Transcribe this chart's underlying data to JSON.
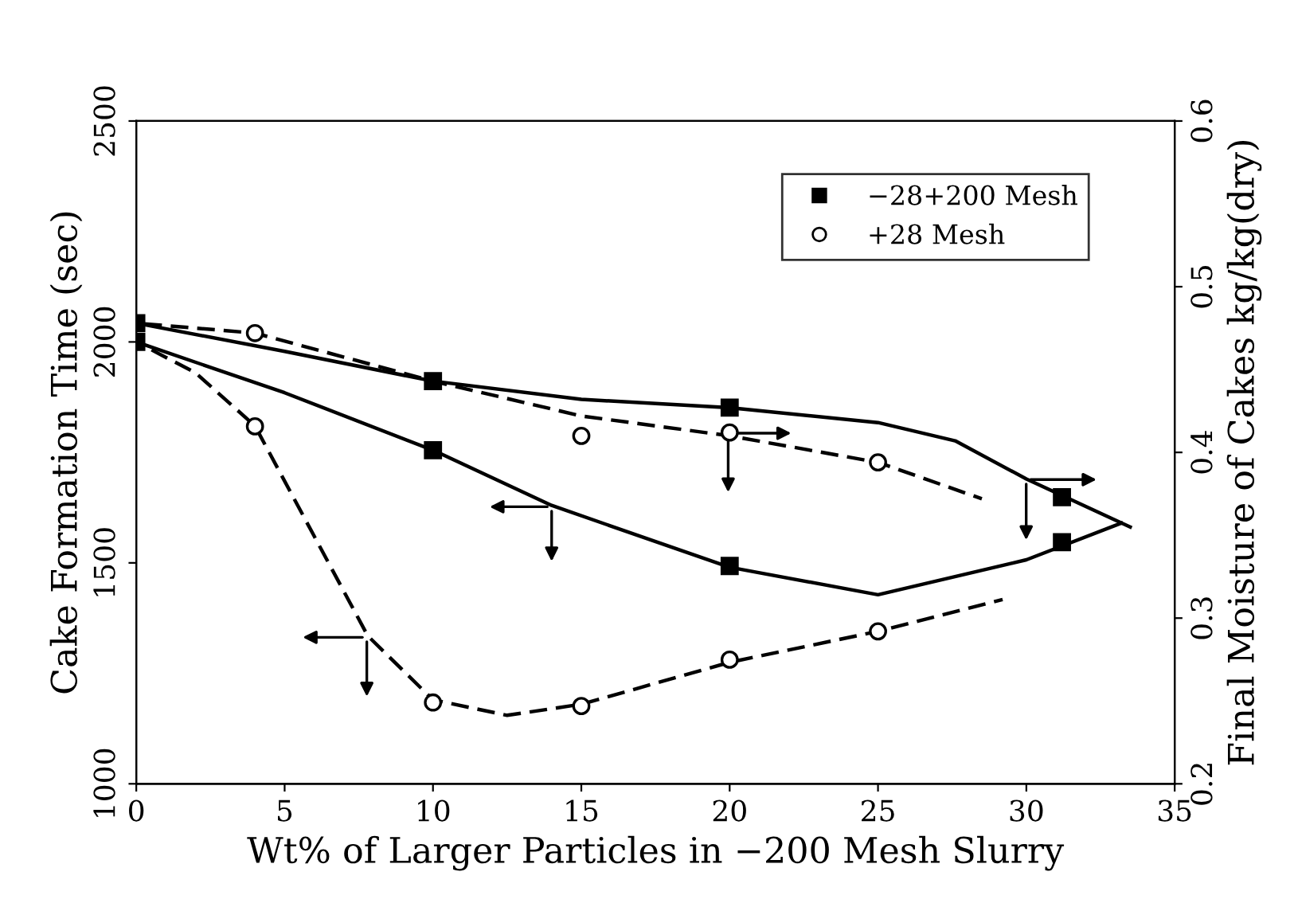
{
  "chart_data": {
    "type": "line",
    "xlabel": "Wt% of Larger Particles in −200 Mesh Slurry",
    "ylabel": "Cake Formation Time (sec)",
    "y2label": "Final Moisture of Cakes kg/kg(dry)",
    "xlim": [
      0,
      35
    ],
    "xticks": [
      0,
      5,
      10,
      15,
      20,
      25,
      30,
      35
    ],
    "ylim": [
      1000,
      2500
    ],
    "yticks": [
      1000,
      1500,
      2000,
      2500
    ],
    "y2lim": [
      0.2,
      0.6
    ],
    "y2ticks": [
      0.2,
      0.3,
      0.4,
      0.5,
      0.6
    ],
    "legend": "top right",
    "grid": false,
    "series": [
      {
        "name": "−28+200 Mesh",
        "type": "scatter",
        "marker": "square",
        "color": "#000000",
        "x": [
          0,
          10,
          20,
          31.2
        ],
        "values": [
          2000,
          1755,
          1493,
          1547
        ]
      },
      {
        "name": "+28 Mesh",
        "type": "scatter",
        "marker": "circle",
        "color": "#000000",
        "x": [
          4,
          10,
          15,
          20,
          25
        ],
        "values": [
          1809,
          1184,
          1176,
          1281,
          1345
        ]
      },
      {
        "type": "scatter",
        "axis": "y2",
        "marker": "square",
        "color": "#000000",
        "x": [
          0,
          10,
          20,
          31.2
        ],
        "values": [
          0.478,
          0.443,
          0.427,
          0.373
        ]
      },
      {
        "type": "scatter",
        "axis": "y2",
        "marker": "circle",
        "color": "#000000",
        "x": [
          4,
          15,
          20,
          25
        ],
        "values": [
          0.472,
          0.41,
          0.412,
          0.394
        ]
      },
      {
        "line_style": "solid",
        "color": "#000000",
        "x": [
          0,
          5,
          10,
          14,
          20,
          25,
          30,
          33.2
        ],
        "values": [
          2000,
          1885,
          1755,
          1630,
          1490,
          1428,
          1507,
          1590
        ]
      },
      {
        "line_style": "dashed",
        "color": "#000000",
        "x": [
          0,
          2,
          4,
          6,
          7.8,
          10,
          12.5,
          15,
          20,
          25,
          29.2
        ],
        "values": [
          2000,
          1930,
          1810,
          1560,
          1335,
          1190,
          1155,
          1180,
          1275,
          1345,
          1417
        ]
      },
      {
        "axis": "y2",
        "line_style": "solid",
        "color": "#000000",
        "x": [
          0,
          5,
          10,
          15,
          20,
          25,
          27.6,
          30,
          33.5
        ],
        "values": [
          0.478,
          0.461,
          0.443,
          0.432,
          0.427,
          0.418,
          0.407,
          0.384,
          0.355
        ]
      },
      {
        "axis": "y2",
        "line_style": "dashed",
        "color": "#000000",
        "x": [
          0,
          4,
          10,
          15,
          20,
          25,
          28.5
        ],
        "values": [
          0.478,
          0.472,
          0.443,
          0.422,
          0.41,
          0.394,
          0.372
        ]
      }
    ]
  }
}
